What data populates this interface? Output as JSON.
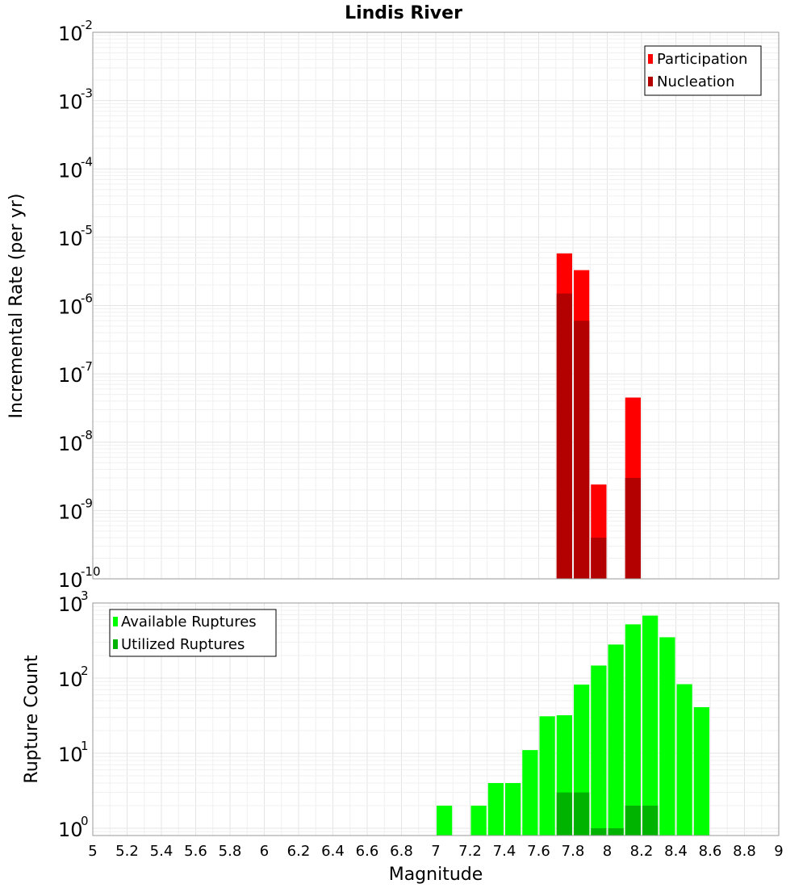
{
  "chart_data": [
    {
      "type": "bar",
      "title": "Lindis River",
      "xlabel": "",
      "ylabel": "Incremental Rate (per yr)",
      "yscale": "log",
      "ylim": [
        1e-10,
        0.01
      ],
      "xlim": [
        5,
        9
      ],
      "bin_width": 0.1,
      "grid": true,
      "legend_position": "top-right",
      "y_ticks": [
        {
          "base": "10",
          "exp": "-10",
          "value": 1e-10
        },
        {
          "base": "10",
          "exp": "-9",
          "value": 1e-09
        },
        {
          "base": "10",
          "exp": "-8",
          "value": 1e-08
        },
        {
          "base": "10",
          "exp": "-7",
          "value": 1e-07
        },
        {
          "base": "10",
          "exp": "-6",
          "value": 1e-06
        },
        {
          "base": "10",
          "exp": "-5",
          "value": 1e-05
        },
        {
          "base": "10",
          "exp": "-4",
          "value": 0.0001
        },
        {
          "base": "10",
          "exp": "-3",
          "value": 0.001
        },
        {
          "base": "10",
          "exp": "-2",
          "value": 0.01
        }
      ],
      "series": [
        {
          "name": "Participation",
          "color": "#ff0000",
          "x": [
            7.75,
            7.85,
            7.95,
            8.15
          ],
          "values": [
            5.8e-06,
            3.3e-06,
            2.4e-09,
            4.5e-08
          ]
        },
        {
          "name": "Nucleation",
          "color": "#b30000",
          "x": [
            7.75,
            7.85,
            7.95,
            8.15
          ],
          "values": [
            1.5e-06,
            6e-07,
            4e-10,
            3e-09
          ]
        }
      ]
    },
    {
      "type": "bar",
      "title": "",
      "xlabel": "Magnitude",
      "ylabel": "Rupture Count",
      "yscale": "log",
      "ylim": [
        0.8,
        1000
      ],
      "xlim": [
        5,
        9
      ],
      "bin_width": 0.1,
      "grid": true,
      "legend_position": "top-left",
      "x_ticks": [
        "5",
        "5.2",
        "5.4",
        "5.6",
        "5.8",
        "6",
        "6.2",
        "6.4",
        "6.6",
        "6.8",
        "7",
        "7.2",
        "7.4",
        "7.6",
        "7.8",
        "8",
        "8.2",
        "8.4",
        "8.6",
        "8.8",
        "9"
      ],
      "y_ticks": [
        {
          "base": "10",
          "exp": "0",
          "value": 1
        },
        {
          "base": "10",
          "exp": "1",
          "value": 10
        },
        {
          "base": "10",
          "exp": "2",
          "value": 100
        },
        {
          "base": "10",
          "exp": "3",
          "value": 1000
        }
      ],
      "series": [
        {
          "name": "Available Ruptures",
          "color": "#00ff00",
          "x": [
            7.05,
            7.25,
            7.35,
            7.45,
            7.55,
            7.65,
            7.75,
            7.85,
            7.95,
            8.05,
            8.15,
            8.25,
            8.35,
            8.45,
            8.55
          ],
          "values": [
            2,
            2,
            4,
            4,
            11,
            31,
            32,
            82,
            147,
            280,
            520,
            680,
            350,
            83,
            41
          ]
        },
        {
          "name": "Utilized Ruptures",
          "color": "#00b300",
          "x": [
            7.75,
            7.85,
            7.95,
            8.05,
            8.15,
            8.25
          ],
          "values": [
            3,
            3,
            1,
            1,
            2,
            2
          ]
        }
      ]
    }
  ]
}
